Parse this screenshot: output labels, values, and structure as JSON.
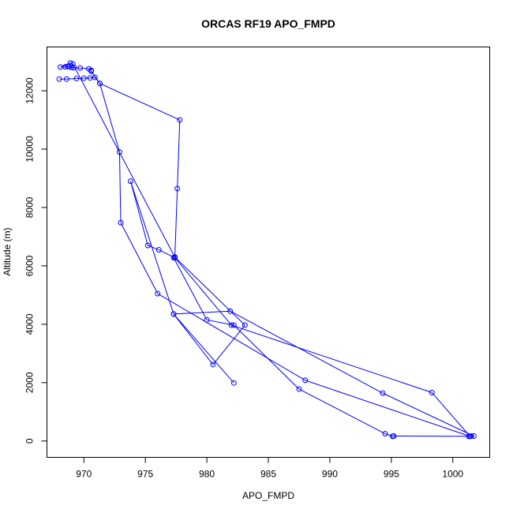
{
  "chart_data": {
    "type": "line",
    "title": "ORCAS RF19 APO_FMPD",
    "xlabel": "APO_FMPD",
    "ylabel": "Altitude (m)",
    "xlim": [
      967,
      1003
    ],
    "ylim": [
      -560,
      13500
    ],
    "xticks": [
      970,
      975,
      980,
      985,
      990,
      995,
      1000
    ],
    "yticks": [
      0,
      2000,
      4000,
      6000,
      8000,
      10000,
      12000
    ],
    "grid": false,
    "series_color": "#0000ff",
    "series": [
      {
        "x": [
          968.0,
          968.6,
          969.4,
          970.0,
          970.5,
          970.9,
          971.3,
          977.8,
          977.6,
          977.4,
          977.3,
          980.0,
          982.2,
          987.5,
          994.5,
          995.1,
          995.2,
          1001.3,
          1001.5,
          1001.7,
          994.3,
          981.9,
          977.3,
          973.8,
          975.2,
          976.1,
          977.4,
          982.0,
          998.3,
          1001.4,
          988.0,
          976.0,
          973.0,
          972.9,
          971.3,
          970.6,
          970.6,
          970.4,
          969.7,
          969.2,
          969.0,
          968.8,
          968.7,
          968.5,
          968.1,
          968.9,
          969.1,
          977.4,
          983.1,
          980.5,
          977.3,
          982.2
        ],
        "y": [
          12400,
          12400,
          12420,
          12430,
          12440,
          12460,
          12250,
          11000,
          8650,
          6300,
          6280,
          4150,
          3970,
          1780,
          250,
          160,
          170,
          160,
          170,
          170,
          1640,
          4450,
          4350,
          8900,
          6700,
          6550,
          6280,
          3970,
          1660,
          160,
          2080,
          5050,
          7480,
          9900,
          12250,
          12670,
          12700,
          12750,
          12780,
          12790,
          12800,
          12830,
          12830,
          12820,
          12810,
          12950,
          12920,
          6300,
          3970,
          2620,
          4350,
          1990
        ]
      }
    ]
  }
}
